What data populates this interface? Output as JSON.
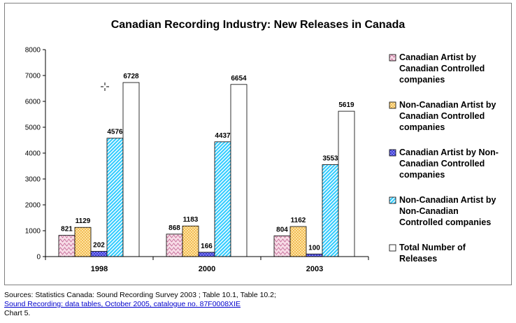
{
  "colors": {
    "plot_border": "#808080",
    "axis": "#000000",
    "link": "#0000cc",
    "series": [
      "#e8b4c8",
      "#ffcc66",
      "#3333cc",
      "#33ccff",
      "#ffffff"
    ]
  },
  "chart_data": {
    "type": "bar",
    "title": "Canadian Recording Industry: New Releases in Canada",
    "xlabel": "",
    "ylabel": "",
    "ylim": [
      0,
      8000
    ],
    "yticks": [
      0,
      1000,
      2000,
      3000,
      4000,
      5000,
      6000,
      7000,
      8000
    ],
    "categories": [
      "1998",
      "2000",
      "2003"
    ],
    "series": [
      {
        "name": "Canadian Artist by Canadian Controlled companies",
        "values": [
          821,
          868,
          804
        ],
        "pattern": "wave"
      },
      {
        "name": "Non-Canadian Artist by Canadian Controlled companies",
        "values": [
          1129,
          1183,
          1162
        ],
        "pattern": "dots"
      },
      {
        "name": "Canadian Artist by Non-Canadian Controlled companies",
        "values": [
          202,
          166,
          100
        ],
        "pattern": "grid"
      },
      {
        "name": "Non-Canadian Artist by Non-Canadian Controlled companies",
        "values": [
          4576,
          4437,
          3553
        ],
        "pattern": "diag"
      },
      {
        "name": "Total Number of Releases",
        "values": [
          6728,
          6654,
          5619
        ],
        "pattern": "none"
      }
    ],
    "legend_position": "right",
    "grid": false
  },
  "source": {
    "line1": "Sources: Statistics Canada: Sound Recording Survey 2003 ; Table 10.1, Table 10.2;",
    "link": "Sound Recording: data tables, October 2005, catalogue no. 87F0008XIE",
    "line3": "Chart 5."
  }
}
